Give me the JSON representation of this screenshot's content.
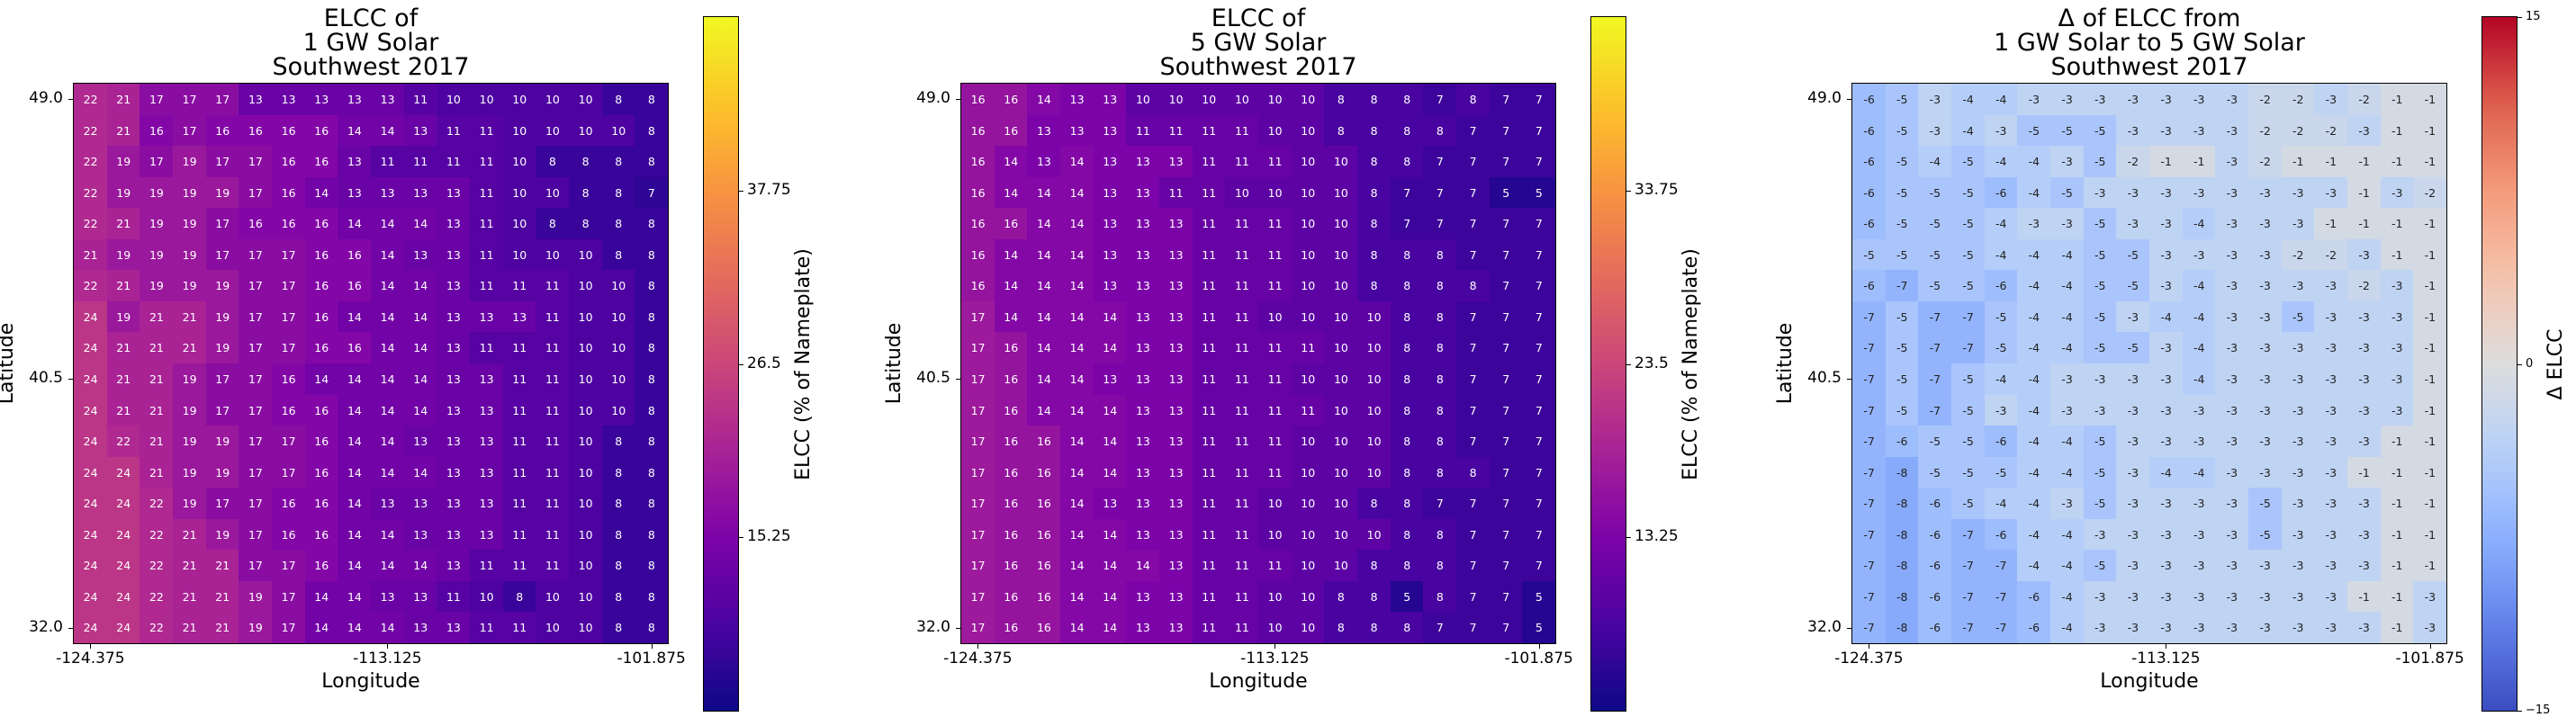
{
  "chart_data": [
    {
      "type": "heatmap",
      "title": "ELCC of\n1 GW Solar\nSouthwest 2017",
      "xlabel": "Longitude",
      "ylabel": "Latitude",
      "xticks": [
        "-124.375",
        "-113.125",
        "-101.875"
      ],
      "yticks": [
        "49.0",
        "40.5",
        "32.0"
      ],
      "colormap": "plasma",
      "colorbar": {
        "label": "ELCC (% of Nameplate)",
        "ticks": [
          "37.75",
          "26.5",
          "15.25"
        ],
        "range": [
          4,
          49
        ]
      },
      "values": [
        [
          22,
          21,
          17,
          17,
          17,
          13,
          13,
          13,
          13,
          13,
          11,
          10,
          10,
          10,
          10,
          10,
          8,
          8
        ],
        [
          22,
          21,
          16,
          17,
          16,
          16,
          16,
          16,
          14,
          14,
          13,
          11,
          11,
          10,
          10,
          10,
          10,
          8
        ],
        [
          22,
          19,
          17,
          19,
          17,
          17,
          16,
          16,
          13,
          11,
          11,
          11,
          11,
          10,
          8,
          8,
          8,
          8
        ],
        [
          22,
          19,
          19,
          19,
          19,
          17,
          16,
          14,
          13,
          13,
          13,
          13,
          11,
          10,
          10,
          8,
          8,
          7
        ],
        [
          22,
          21,
          19,
          19,
          17,
          16,
          16,
          16,
          14,
          14,
          14,
          13,
          11,
          10,
          8,
          8,
          8,
          8
        ],
        [
          21,
          19,
          19,
          19,
          17,
          17,
          17,
          16,
          16,
          14,
          13,
          13,
          11,
          10,
          10,
          10,
          8,
          8
        ],
        [
          22,
          21,
          19,
          19,
          19,
          17,
          17,
          16,
          16,
          14,
          14,
          13,
          11,
          11,
          11,
          10,
          10,
          8
        ],
        [
          24,
          19,
          21,
          21,
          19,
          17,
          17,
          16,
          14,
          14,
          14,
          13,
          13,
          13,
          11,
          10,
          10,
          8
        ],
        [
          24,
          21,
          21,
          21,
          19,
          17,
          17,
          16,
          16,
          14,
          14,
          13,
          11,
          11,
          11,
          10,
          10,
          8
        ],
        [
          24,
          21,
          21,
          19,
          17,
          17,
          16,
          14,
          14,
          14,
          14,
          13,
          13,
          11,
          11,
          10,
          10,
          8
        ],
        [
          24,
          21,
          21,
          19,
          17,
          17,
          16,
          16,
          14,
          14,
          14,
          13,
          13,
          11,
          11,
          10,
          10,
          8
        ],
        [
          24,
          22,
          21,
          19,
          19,
          17,
          17,
          16,
          14,
          14,
          13,
          13,
          13,
          11,
          11,
          10,
          8,
          8
        ],
        [
          24,
          24,
          21,
          19,
          19,
          17,
          17,
          16,
          14,
          14,
          14,
          13,
          13,
          11,
          11,
          10,
          8,
          8
        ],
        [
          24,
          24,
          22,
          19,
          17,
          17,
          16,
          16,
          14,
          13,
          13,
          13,
          13,
          11,
          11,
          10,
          8,
          8
        ],
        [
          24,
          24,
          22,
          21,
          19,
          17,
          16,
          16,
          14,
          14,
          13,
          13,
          13,
          11,
          11,
          10,
          8,
          8
        ],
        [
          24,
          24,
          22,
          21,
          21,
          17,
          17,
          16,
          14,
          14,
          14,
          13,
          11,
          11,
          11,
          10,
          8,
          8
        ],
        [
          24,
          24,
          22,
          21,
          21,
          19,
          17,
          14,
          14,
          13,
          13,
          11,
          10,
          8,
          10,
          10,
          8,
          8
        ],
        [
          24,
          24,
          22,
          21,
          21,
          19,
          17,
          14,
          14,
          14,
          13,
          13,
          11,
          11,
          10,
          10,
          8,
          8
        ]
      ]
    },
    {
      "type": "heatmap",
      "title": "ELCC of\n5 GW Solar\nSouthwest 2017",
      "xlabel": "Longitude",
      "ylabel": "Latitude",
      "xticks": [
        "-124.375",
        "-113.125",
        "-101.875"
      ],
      "yticks": [
        "49.0",
        "40.5",
        "32.0"
      ],
      "colormap": "plasma",
      "colorbar": {
        "label": "ELCC (% of Nameplate)",
        "ticks": [
          "33.75",
          "23.5",
          "13.25"
        ],
        "range": [
          3,
          44
        ]
      },
      "values": [
        [
          16,
          16,
          14,
          13,
          13,
          10,
          10,
          10,
          10,
          10,
          10,
          8,
          8,
          8,
          7,
          8,
          7,
          7
        ],
        [
          16,
          16,
          13,
          13,
          13,
          11,
          11,
          11,
          11,
          10,
          10,
          8,
          8,
          8,
          8,
          7,
          7,
          7
        ],
        [
          16,
          14,
          13,
          14,
          13,
          13,
          13,
          11,
          11,
          11,
          10,
          10,
          8,
          8,
          7,
          7,
          7,
          7
        ],
        [
          16,
          14,
          14,
          14,
          13,
          13,
          11,
          11,
          10,
          10,
          10,
          10,
          8,
          7,
          7,
          7,
          5,
          5
        ],
        [
          16,
          16,
          14,
          14,
          13,
          13,
          13,
          11,
          11,
          11,
          10,
          10,
          8,
          7,
          7,
          7,
          7,
          7
        ],
        [
          16,
          14,
          14,
          14,
          13,
          13,
          13,
          11,
          11,
          11,
          10,
          10,
          8,
          8,
          8,
          7,
          7,
          7
        ],
        [
          16,
          14,
          14,
          14,
          13,
          13,
          13,
          11,
          11,
          11,
          10,
          10,
          8,
          8,
          8,
          8,
          7,
          7
        ],
        [
          17,
          14,
          14,
          14,
          14,
          13,
          13,
          11,
          11,
          10,
          10,
          10,
          10,
          8,
          8,
          7,
          7,
          7
        ],
        [
          17,
          16,
          14,
          14,
          14,
          13,
          13,
          11,
          11,
          11,
          11,
          10,
          10,
          8,
          8,
          7,
          7,
          7
        ],
        [
          17,
          16,
          14,
          14,
          13,
          13,
          13,
          11,
          11,
          11,
          10,
          10,
          10,
          8,
          8,
          7,
          7,
          7
        ],
        [
          17,
          16,
          14,
          14,
          14,
          13,
          13,
          11,
          11,
          11,
          11,
          10,
          10,
          8,
          8,
          7,
          7,
          7
        ],
        [
          17,
          16,
          16,
          14,
          14,
          13,
          13,
          11,
          11,
          11,
          10,
          10,
          10,
          8,
          8,
          7,
          7,
          7
        ],
        [
          17,
          16,
          16,
          14,
          14,
          13,
          13,
          11,
          11,
          11,
          10,
          10,
          10,
          8,
          8,
          8,
          7,
          7
        ],
        [
          17,
          16,
          16,
          14,
          13,
          13,
          13,
          11,
          11,
          10,
          10,
          10,
          8,
          8,
          7,
          7,
          7,
          7
        ],
        [
          17,
          16,
          16,
          14,
          14,
          13,
          13,
          11,
          11,
          10,
          10,
          10,
          10,
          8,
          8,
          7,
          7,
          7
        ],
        [
          17,
          16,
          16,
          14,
          14,
          14,
          13,
          11,
          11,
          11,
          10,
          10,
          8,
          8,
          8,
          7,
          7,
          7
        ],
        [
          17,
          16,
          16,
          14,
          14,
          13,
          13,
          11,
          11,
          10,
          10,
          8,
          8,
          5,
          8,
          7,
          7,
          5
        ],
        [
          17,
          16,
          16,
          14,
          14,
          13,
          13,
          11,
          11,
          10,
          10,
          8,
          8,
          8,
          7,
          7,
          7,
          5
        ]
      ]
    },
    {
      "type": "heatmap",
      "title": "Δ of ELCC from\n1 GW Solar to 5 GW Solar\nSouthwest 2017",
      "xlabel": "Longitude",
      "ylabel": "Latitude",
      "xticks": [
        "-124.375",
        "-113.125",
        "-101.875"
      ],
      "yticks": [
        "49.0",
        "40.5",
        "32.0"
      ],
      "colormap": "coolwarm",
      "colorbar": {
        "label": "Δ ELCC",
        "ticks": [
          "15",
          "0",
          "−15"
        ],
        "range": [
          -15,
          15
        ]
      },
      "values": [
        [
          -6,
          -5,
          -3,
          -4,
          -4,
          -3,
          -3,
          -3,
          -3,
          -3,
          -3,
          -3,
          -2,
          -2,
          -3,
          -2,
          -1,
          -1
        ],
        [
          -6,
          -5,
          -3,
          -4,
          -3,
          -5,
          -5,
          -5,
          -3,
          -3,
          -3,
          -3,
          -2,
          -2,
          -2,
          -3,
          -1,
          -1
        ],
        [
          -6,
          -5,
          -4,
          -5,
          -4,
          -4,
          -3,
          -5,
          -2,
          -1,
          -1,
          -3,
          -2,
          -1,
          -1,
          -1,
          -1,
          -1
        ],
        [
          -6,
          -5,
          -5,
          -5,
          -6,
          -4,
          -5,
          -3,
          -3,
          -3,
          -3,
          -3,
          -3,
          -3,
          -3,
          -1,
          -3,
          -2
        ],
        [
          -6,
          -5,
          -5,
          -5,
          -4,
          -3,
          -3,
          -5,
          -3,
          -3,
          -4,
          -3,
          -3,
          -3,
          -1,
          -1,
          -1,
          -1
        ],
        [
          -5,
          -5,
          -5,
          -5,
          -4,
          -4,
          -4,
          -5,
          -5,
          -3,
          -3,
          -3,
          -3,
          -2,
          -2,
          -3,
          -1,
          -1
        ],
        [
          -6,
          -7,
          -5,
          -5,
          -6,
          -4,
          -4,
          -5,
          -5,
          -3,
          -4,
          -3,
          -3,
          -3,
          -3,
          -2,
          -3,
          -1
        ],
        [
          -7,
          -5,
          -7,
          -7,
          -5,
          -4,
          -4,
          -5,
          -3,
          -4,
          -4,
          -3,
          -3,
          -5,
          -3,
          -3,
          -3,
          -1
        ],
        [
          -7,
          -5,
          -7,
          -7,
          -5,
          -4,
          -4,
          -5,
          -5,
          -3,
          -4,
          -3,
          -3,
          -3,
          -3,
          -3,
          -3,
          -1
        ],
        [
          -7,
          -5,
          -7,
          -5,
          -4,
          -4,
          -3,
          -3,
          -3,
          -3,
          -4,
          -3,
          -3,
          -3,
          -3,
          -3,
          -3,
          -1
        ],
        [
          -7,
          -5,
          -7,
          -5,
          -3,
          -4,
          -3,
          -3,
          -3,
          -3,
          -3,
          -3,
          -3,
          -3,
          -3,
          -3,
          -3,
          -1
        ],
        [
          -7,
          -6,
          -5,
          -5,
          -6,
          -4,
          -4,
          -5,
          -3,
          -3,
          -3,
          -3,
          -3,
          -3,
          -3,
          -3,
          -1,
          -1
        ],
        [
          -7,
          -8,
          -5,
          -5,
          -5,
          -4,
          -4,
          -5,
          -3,
          -4,
          -4,
          -3,
          -3,
          -3,
          -3,
          -1,
          -1,
          -1
        ],
        [
          -7,
          -8,
          -6,
          -5,
          -4,
          -4,
          -3,
          -5,
          -3,
          -3,
          -3,
          -3,
          -5,
          -3,
          -3,
          -3,
          -1,
          -1
        ],
        [
          -7,
          -8,
          -6,
          -7,
          -6,
          -4,
          -4,
          -3,
          -3,
          -3,
          -3,
          -3,
          -5,
          -3,
          -3,
          -3,
          -1,
          -1
        ],
        [
          -7,
          -8,
          -6,
          -7,
          -7,
          -4,
          -4,
          -5,
          -3,
          -3,
          -3,
          -3,
          -3,
          -3,
          -3,
          -3,
          -1,
          -1
        ],
        [
          -7,
          -8,
          -6,
          -7,
          -7,
          -6,
          -4,
          -3,
          -3,
          -3,
          -3,
          -3,
          -3,
          -3,
          -3,
          -1,
          -1,
          -3
        ],
        [
          -7,
          -8,
          -6,
          -7,
          -7,
          -6,
          -4,
          -3,
          -3,
          -3,
          -3,
          -3,
          -3,
          -3,
          -3,
          -3,
          -1,
          -3
        ]
      ]
    }
  ]
}
